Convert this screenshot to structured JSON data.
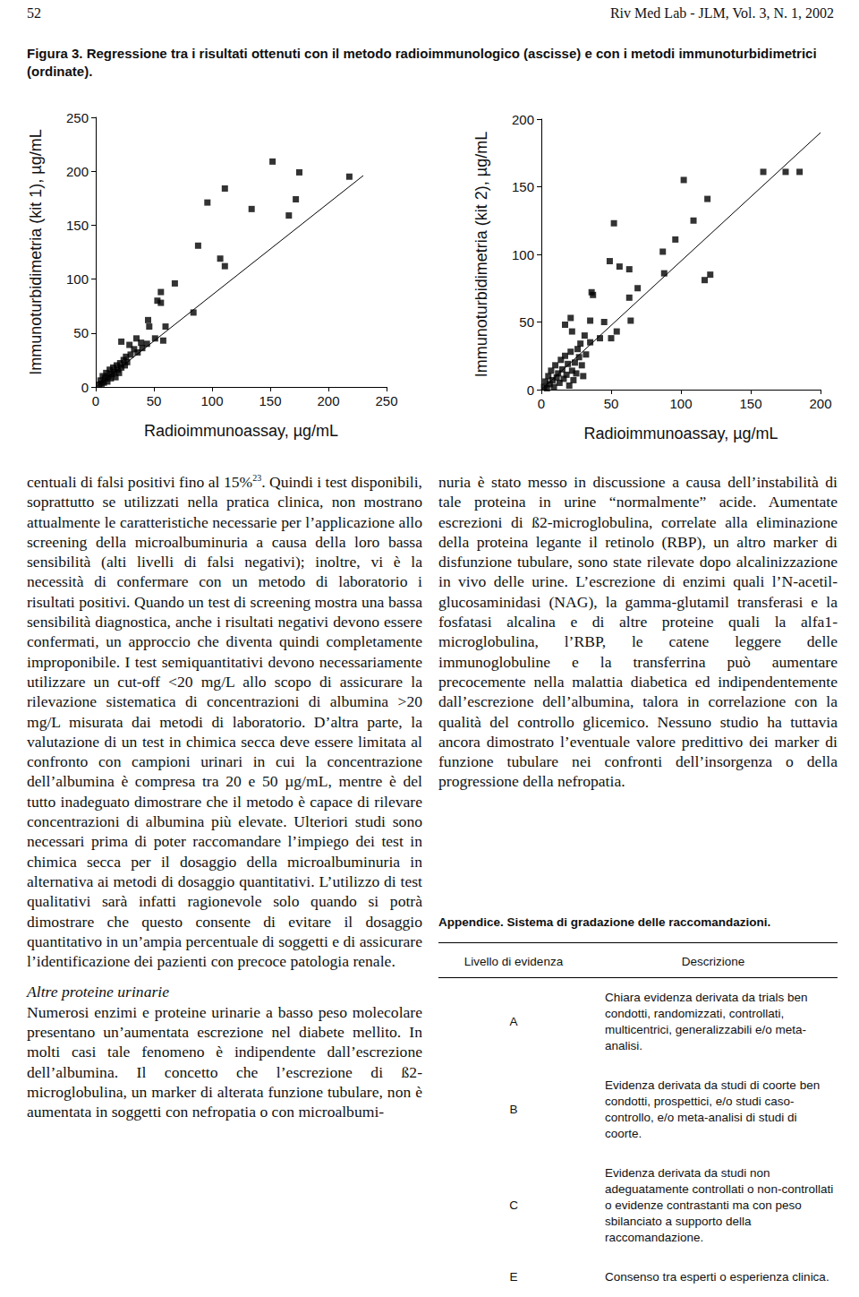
{
  "header": {
    "page_number": "52",
    "journal": "Riv Med Lab - JLM, Vol. 3, N. 1, 2002"
  },
  "figure": {
    "caption": "Figura 3. Regressione tra i risultati ottenuti con il metodo radioimmunologico (ascisse) e con i metodi immunoturbidimetrici (ordinate)."
  },
  "chart_data": [
    {
      "type": "scatter",
      "xlabel": "Radioimmunoassay, µg/mL",
      "ylabel": "Immunoturbidimetria (kit 1), µg/mL",
      "color": "#000000",
      "marker": "square",
      "xlim": [
        0,
        250
      ],
      "ylim": [
        0,
        250
      ],
      "xticks": [
        0,
        50,
        100,
        150,
        200,
        250
      ],
      "yticks": [
        0,
        50,
        100,
        150,
        200,
        250
      ],
      "x": [
        3,
        4,
        5,
        6,
        7,
        8,
        9,
        10,
        11,
        12,
        13,
        14,
        15,
        16,
        17,
        18,
        19,
        20,
        21,
        22,
        24,
        25,
        26,
        27,
        29,
        30,
        22,
        33,
        35,
        36,
        39,
        40,
        44,
        45,
        46,
        51,
        53,
        56,
        56,
        58,
        60,
        68,
        84,
        88,
        96,
        107,
        111,
        111,
        134,
        152,
        166,
        172,
        175,
        218
      ],
      "y": [
        2,
        6,
        3,
        10,
        4,
        8,
        13,
        5,
        10,
        16,
        8,
        12,
        18,
        14,
        9,
        20,
        16,
        13,
        22,
        18,
        25,
        20,
        28,
        23,
        39,
        30,
        42,
        35,
        45,
        32,
        41,
        36,
        40,
        62,
        56,
        45,
        80,
        88,
        78,
        43,
        56,
        96,
        69,
        131,
        171,
        119,
        112,
        184,
        165,
        209,
        159,
        174,
        199,
        195
      ],
      "fit": {
        "x": [
          0,
          230
        ],
        "y": [
          0,
          196
        ]
      }
    },
    {
      "type": "scatter",
      "xlabel": "Radioimmunoassay, µg/mL",
      "ylabel": "Immunoturbidimetria (kit 2), µg/mL",
      "color": "#000000",
      "marker": "square",
      "xlim": [
        0,
        200
      ],
      "ylim": [
        0,
        200
      ],
      "xticks": [
        0,
        50,
        100,
        150,
        200
      ],
      "yticks": [
        0,
        50,
        100,
        150,
        200
      ],
      "x": [
        2,
        3,
        4,
        5,
        6,
        7,
        8,
        9,
        10,
        11,
        12,
        13,
        14,
        15,
        16,
        17,
        18,
        19,
        20,
        21,
        22,
        23,
        24,
        25,
        26,
        27,
        28,
        29,
        30,
        31,
        32,
        35,
        17,
        21,
        22,
        35,
        36,
        37,
        42,
        45,
        49,
        50,
        52,
        54,
        56,
        63,
        63,
        64,
        69,
        87,
        88,
        96,
        102,
        109,
        117,
        119,
        121,
        159,
        175,
        185
      ],
      "y": [
        2,
        6,
        1,
        10,
        4,
        14,
        7,
        2,
        18,
        9,
        12,
        5,
        22,
        15,
        8,
        25,
        11,
        19,
        3,
        28,
        14,
        7,
        20,
        12,
        30,
        24,
        34,
        18,
        10,
        40,
        26,
        35,
        48,
        53,
        43,
        51,
        72,
        70,
        38,
        50,
        95,
        38,
        123,
        43,
        91,
        89,
        68,
        51,
        75,
        102,
        86,
        111,
        155,
        125,
        81,
        141,
        85,
        161,
        161,
        161
      ],
      "fit": {
        "x": [
          0,
          200
        ],
        "y": [
          0,
          190
        ]
      }
    }
  ],
  "left_column": {
    "p1": {
      "before": "centuali di falsi positivi fino al 15%",
      "ref": "23",
      "after": ". Quindi i test disponibili, soprattutto se utilizzati nella pratica clinica, non mostrano attualmente le caratteristiche necessarie per l’applicazione allo screening della microalbuminuria a causa della loro bassa sensibilità (alti livelli di falsi negativi); inoltre, vi è la necessità di confermare con un metodo di laboratorio i risultati positivi. Quando un test di screening mostra una bassa sensibilità diagnostica, anche i risultati negativi devono essere confermati, un approccio che diventa quindi completamente improponibile. I test semiquantitativi devono necessariamente utilizzare un cut-off <20 mg/L allo scopo di assicurare la rilevazione sistematica di concentrazioni di albumina >20 mg/L misurata dai metodi di laboratorio. D’altra parte, la valutazione di un test in chimica secca deve essere limitata al confronto con campioni urinari in cui la concentrazione dell’albumina è compresa tra 20 e 50 µg/mL, mentre è del tutto inadeguato dimostrare che il metodo è capace di rilevare concentrazioni di albumina più elevate. Ulteriori studi sono necessari prima di poter raccomandare l’impiego dei test in chimica secca per il dosaggio della microalbuminuria in alternativa ai metodi di dosaggio quantitativi. L’utilizzo di test qualitativi sarà infatti ragionevole solo quando si potrà dimostrare che questo consente di evitare il dosaggio quantitativo in un’ampia percentuale di soggetti e di assicurare l’identificazione dei pazienti con precoce patologia renale."
    },
    "heading": "Altre proteine urinarie",
    "p2": "Numerosi enzimi e proteine urinarie a basso peso molecolare presentano un’aumentata escrezione nel diabete mellito. In molti casi tale fenomeno è indipendente dall’escrezione dell’albumina. Il concetto che l’escrezione di ß2-microglobulina, un marker di alterata funzione tubulare, non è aumentata in soggetti con nefropatia o con microalbumi-"
  },
  "right_column": {
    "p1": "nuria è stato messo in discussione a causa dell’instabilità di tale proteina in urine “normalmente” acide. Aumentate escrezioni di ß2-microglobulina, correlate alla eliminazione della proteina legante il retinolo (RBP), un altro marker di disfunzione tubulare, sono state rilevate dopo alcalinizzazione in vivo delle urine. L’escrezione di enzimi quali l’N-acetil-glucosaminidasi (NAG), la gamma-glutamil transferasi e la fosfatasi alcalina e di altre proteine quali la alfa1-microglobulina, l’RBP, le catene leggere delle immunoglobuline e la transferrina può aumentare precocemente nella malattia diabetica ed indipendentemente dall’escrezione dell’albumina, talora in correlazione con la qualità del controllo glicemico. Nessuno studio ha tuttavia ancora dimostrato l’eventuale valore predittivo dei marker di funzione tubulare nei confronti dell’insorgenza o della progressione della nefropatia."
  },
  "appendix": {
    "title": "Appendice. Sistema di gradazione delle raccomandazioni.",
    "table": {
      "header": [
        "Livello di evidenza",
        "Descrizione"
      ],
      "rows": [
        [
          "A",
          "Chiara evidenza derivata da trials ben condotti, randomizzati, controllati, multicentrici, generalizzabili e/o meta-analisi."
        ],
        [
          "B",
          "Evidenza derivata da studi di coorte ben condotti, prospettici, e/o studi caso-controllo, e/o meta-analisi di studi di coorte."
        ],
        [
          "C",
          "Evidenza derivata da studi non adeguatamente controllati o non-controllati o evidenze contrastanti ma con peso sbilanciato a supporto della raccomandazione."
        ],
        [
          "E",
          "Consenso tra esperti o esperienza clinica."
        ]
      ]
    }
  }
}
